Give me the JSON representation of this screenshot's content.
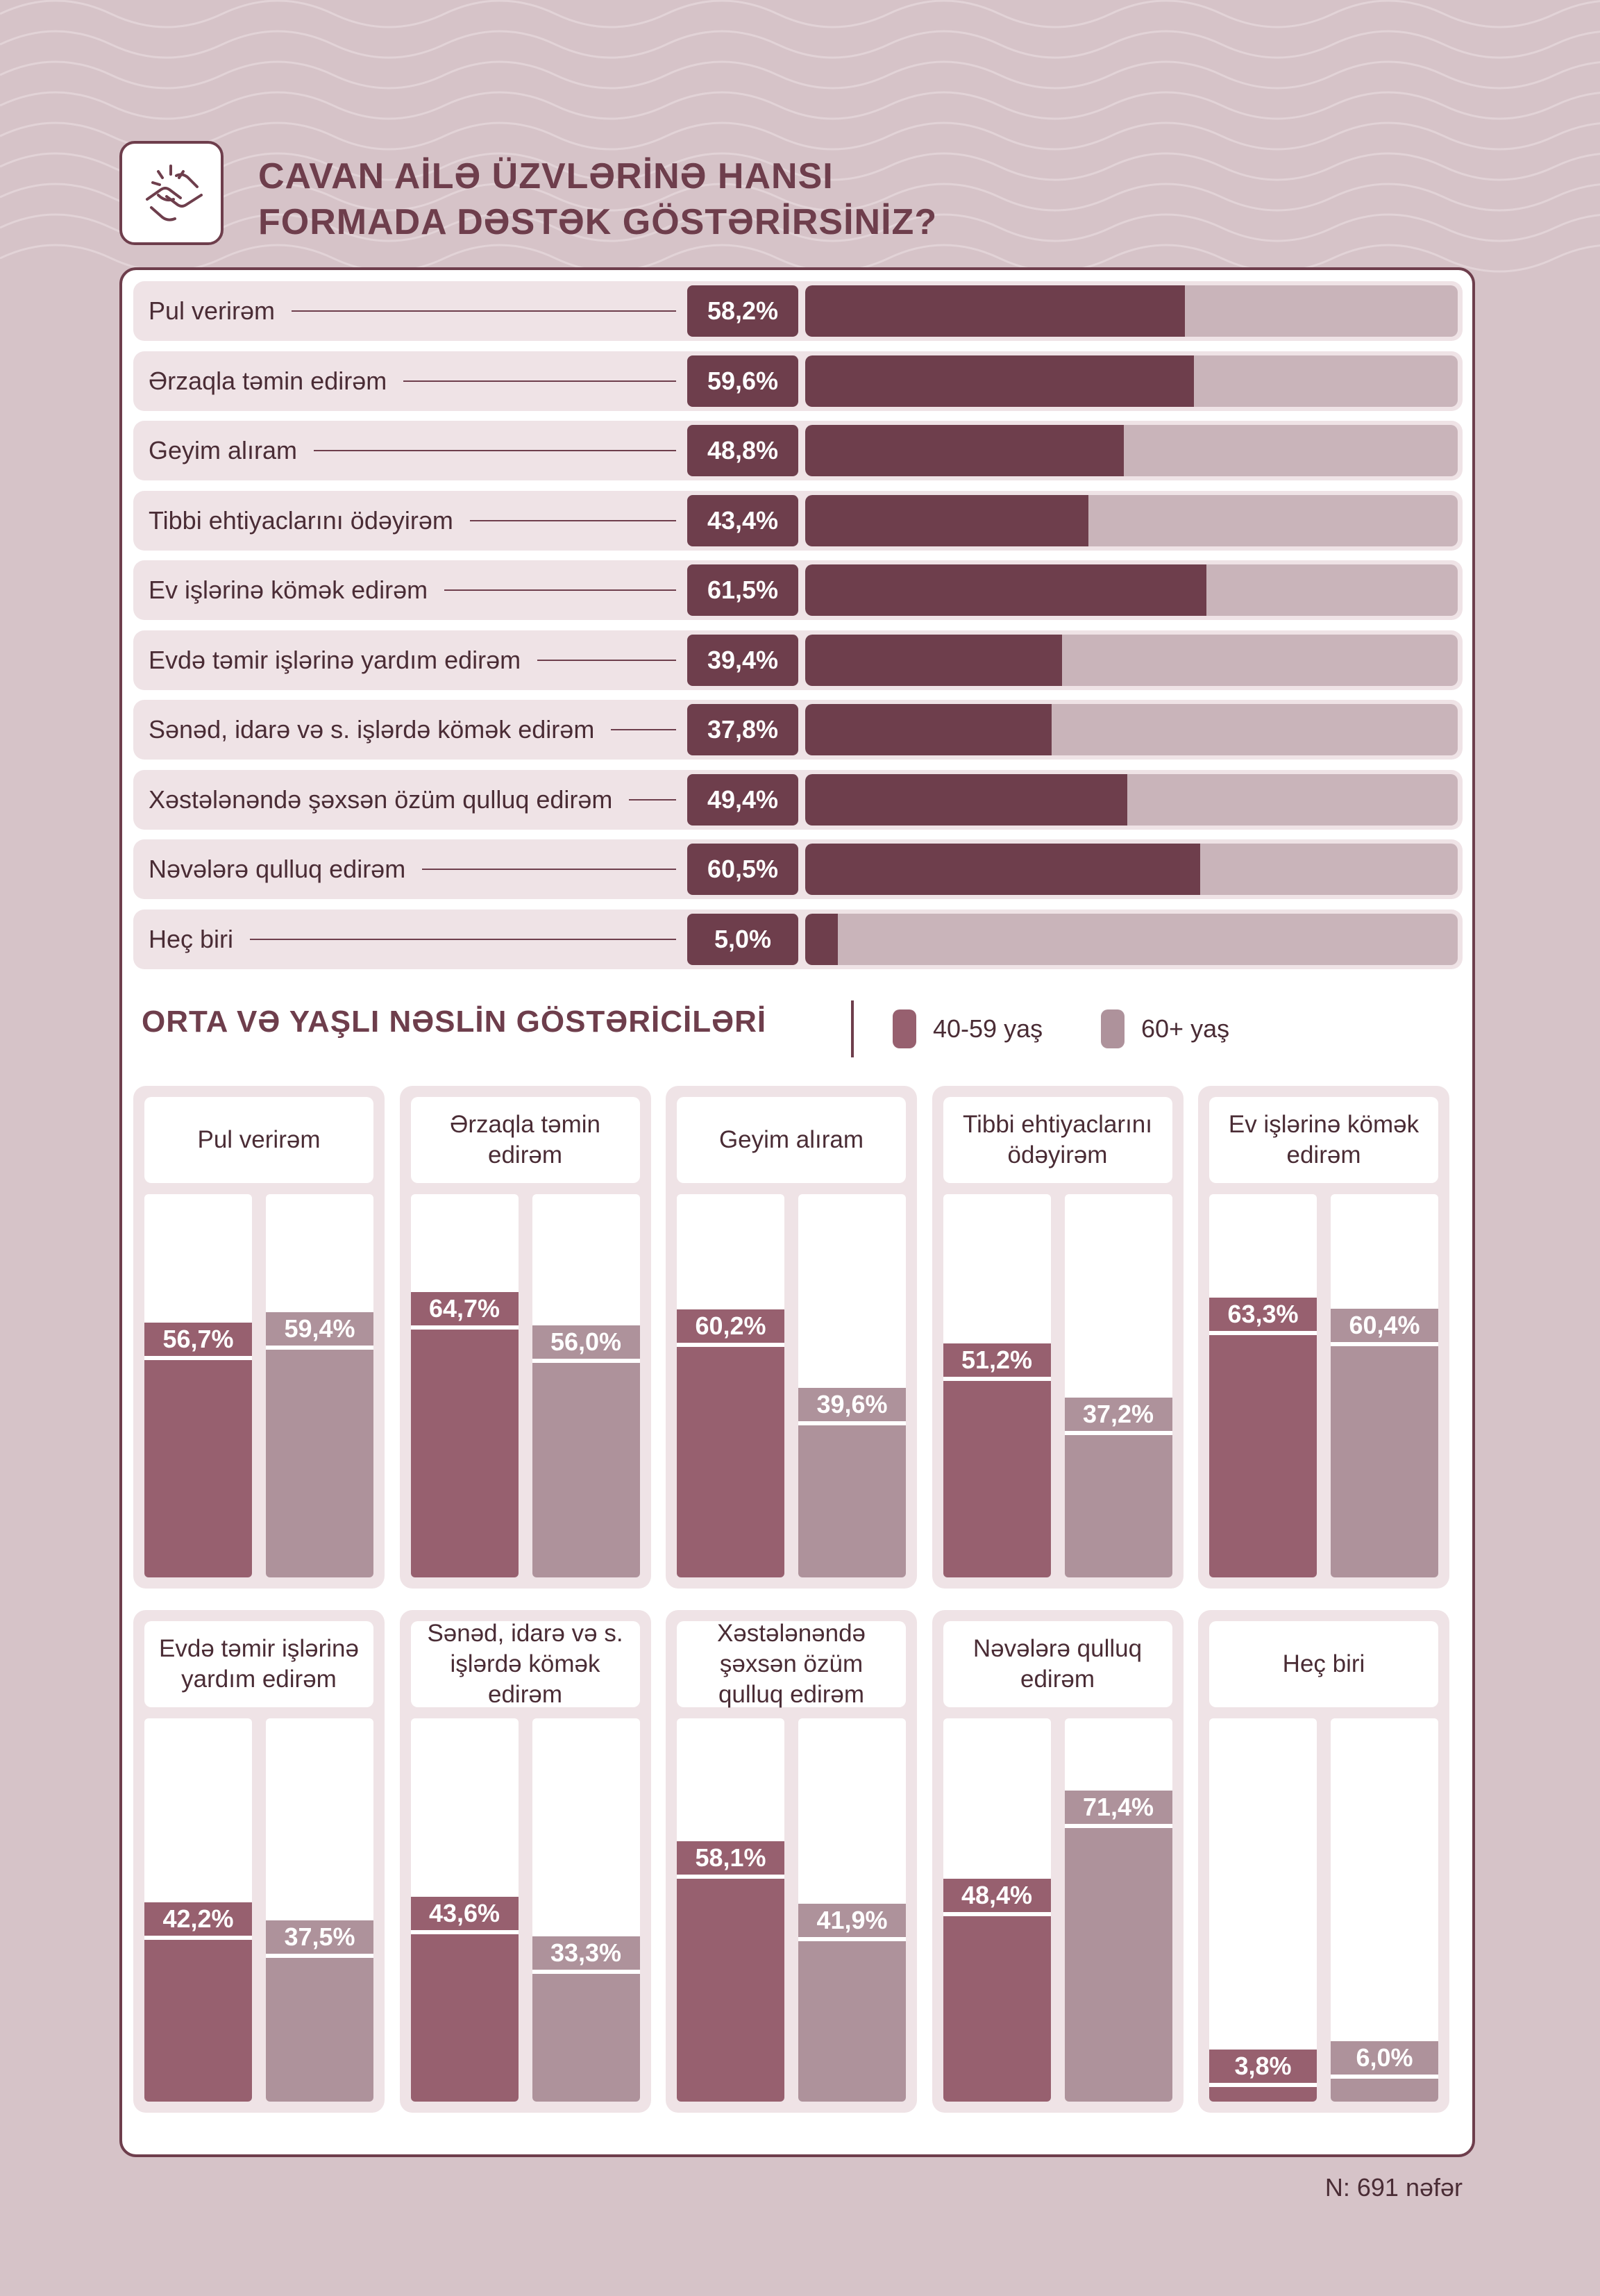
{
  "colors": {
    "background": "#d6c3c8",
    "accent": "#6e3e4c",
    "group_40_59": "#97606f",
    "group_60_plus": "#ae929b",
    "track": "#c9b4ba",
    "row_bg": "#efe3e6"
  },
  "header": {
    "icon": "helping-hands-icon",
    "title_line1": "CAVAN AİLƏ ÜZVLƏRİNƏ HANSI",
    "title_line2": "FORMADA DƏSTƏK GÖSTƏRİRSİNİZ?"
  },
  "section2": {
    "title": "ORTA VƏ YAŞLI NƏSLİN GÖSTƏRİCİLƏRİ"
  },
  "legend": [
    {
      "label": "40-59 yaş",
      "color": "#97606f"
    },
    {
      "label": "60+ yaş",
      "color": "#ae929b"
    }
  ],
  "footnote": "N: 691 nəfər",
  "chart_data": [
    {
      "type": "bar",
      "orientation": "horizontal",
      "title": "CAVAN AİLƏ ÜZVLƏRİNƏ HANSI FORMADA DƏSTƏK GÖSTƏRİRSİNİZ?",
      "unit": "%",
      "xlim": [
        0,
        100
      ],
      "categories": [
        "Pul verirəm",
        "Ərzaqla təmin edirəm",
        "Geyim alıram",
        "Tibbi ehtiyaclarını ödəyirəm",
        "Ev işlərinə kömək edirəm",
        "Evdə təmir işlərinə yardım edirəm",
        "Sənəd, idarə və s. işlərdə kömək edirəm",
        "Xəstələnəndə şəxsən özüm qulluq edirəm",
        "Nəvələrə qulluq edirəm",
        "Heç biri"
      ],
      "values": [
        58.2,
        59.6,
        48.8,
        43.4,
        61.5,
        39.4,
        37.8,
        49.4,
        60.5,
        5.0
      ],
      "value_labels": [
        "58,2%",
        "59,6%",
        "48,8%",
        "43,4%",
        "61,5%",
        "39,4%",
        "37,8%",
        "49,4%",
        "60,5%",
        "5,0%"
      ]
    },
    {
      "type": "bar",
      "title": "ORTA VƏ YAŞLI NƏSLİN GÖSTƏRİCİLƏRİ",
      "unit": "%",
      "ylim": [
        0,
        100
      ],
      "categories": [
        "Pul verirəm",
        "Ərzaqla təmin edirəm",
        "Geyim alıram",
        "Tibbi ehtiyaclarını ödəyirəm",
        "Ev işlərinə kömək edirəm",
        "Evdə təmir işlərinə yardım edirəm",
        "Sənəd, idarə və s. işlərdə kömək edirəm",
        "Xəstələnəndə şəxsən özüm qulluq edirəm",
        "Nəvələrə qulluq edirəm",
        "Heç biri"
      ],
      "legend_position": "top",
      "series": [
        {
          "name": "40-59 yaş",
          "color": "#97606f",
          "values": [
            56.7,
            64.7,
            60.2,
            51.2,
            63.3,
            42.2,
            43.6,
            58.1,
            48.4,
            3.8
          ],
          "value_labels": [
            "56,7%",
            "64,7%",
            "60,2%",
            "51,2%",
            "63,3%",
            "42,2%",
            "43,6%",
            "58,1%",
            "48,4%",
            "3,8%"
          ]
        },
        {
          "name": "60+ yaş",
          "color": "#ae929b",
          "values": [
            59.4,
            56.0,
            39.6,
            37.2,
            60.4,
            37.5,
            33.3,
            41.9,
            71.4,
            6.0
          ],
          "value_labels": [
            "59,4%",
            "56,0%",
            "39,6%",
            "37,2%",
            "60,4%",
            "37,5%",
            "33,3%",
            "41,9%",
            "71,4%",
            "6,0%"
          ]
        }
      ]
    }
  ]
}
